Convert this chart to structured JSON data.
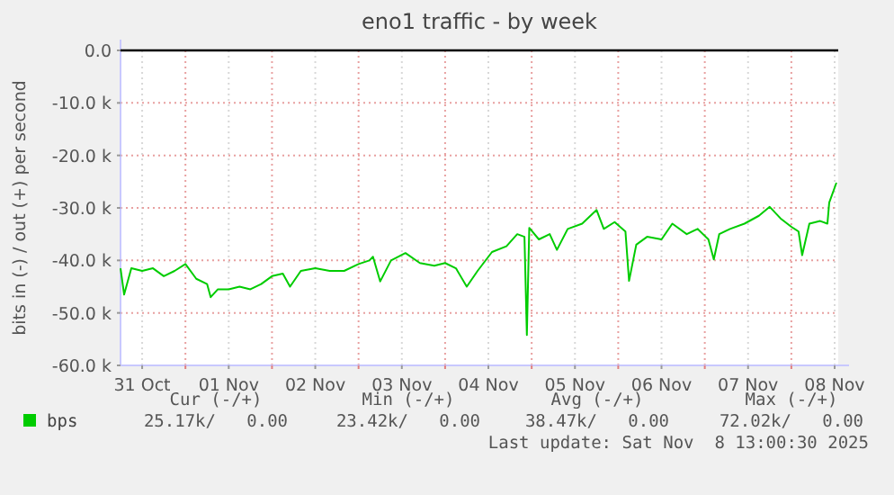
{
  "chart_data": {
    "type": "line",
    "title": "eno1 traffic - by week",
    "ylabel": "bits in (-) / out (+) per second",
    "xlim": [
      "2025-10-31T06:00",
      "2025-11-08T13:00"
    ],
    "xticks": [
      {
        "value": "2025-10-31T12:00",
        "label": "31 Oct"
      },
      {
        "value": "2025-11-01T00:00",
        "label": null
      },
      {
        "value": "2025-11-01T12:00",
        "label": "01 Nov"
      },
      {
        "value": "2025-11-02T00:00",
        "label": null
      },
      {
        "value": "2025-11-02T12:00",
        "label": "02 Nov"
      },
      {
        "value": "2025-11-03T00:00",
        "label": null
      },
      {
        "value": "2025-11-03T12:00",
        "label": "03 Nov"
      },
      {
        "value": "2025-11-04T00:00",
        "label": null
      },
      {
        "value": "2025-11-04T12:00",
        "label": "04 Nov"
      },
      {
        "value": "2025-11-05T00:00",
        "label": null
      },
      {
        "value": "2025-11-05T12:00",
        "label": "05 Nov"
      },
      {
        "value": "2025-11-06T00:00",
        "label": null
      },
      {
        "value": "2025-11-06T12:00",
        "label": "06 Nov"
      },
      {
        "value": "2025-11-07T00:00",
        "label": null
      },
      {
        "value": "2025-11-07T12:00",
        "label": "07 Nov"
      },
      {
        "value": "2025-11-08T00:00",
        "label": null
      },
      {
        "value": "2025-11-08T12:00",
        "label": "08 Nov"
      }
    ],
    "ylim": [
      -60000,
      0
    ],
    "yticks": [
      {
        "value": 0,
        "label": "0.0"
      },
      {
        "value": -10000,
        "label": "-10.0 k"
      },
      {
        "value": -20000,
        "label": "-20.0 k"
      },
      {
        "value": -30000,
        "label": "-30.0 k"
      },
      {
        "value": -40000,
        "label": "-40.0 k"
      },
      {
        "value": -50000,
        "label": "-50.0 k"
      },
      {
        "value": -60000,
        "label": "-60.0 k"
      }
    ],
    "grid": true,
    "legend": "bottom left",
    "marker": "none",
    "line_style": "solid",
    "ref_lines": [
      {
        "axis": "y",
        "value": 0,
        "color": "#000000"
      }
    ],
    "series": [
      {
        "name": "bps",
        "color": "#00cc00",
        "x": [
          "2025-10-31T06:00",
          "2025-10-31T07:00",
          "2025-10-31T09:00",
          "2025-10-31T12:00",
          "2025-10-31T15:00",
          "2025-10-31T18:00",
          "2025-10-31T21:00",
          "2025-11-01T00:00",
          "2025-11-01T03:00",
          "2025-11-01T06:00",
          "2025-11-01T07:00",
          "2025-11-01T09:00",
          "2025-11-01T12:00",
          "2025-11-01T15:00",
          "2025-11-01T18:00",
          "2025-11-01T21:00",
          "2025-11-02T00:00",
          "2025-11-02T03:00",
          "2025-11-02T05:00",
          "2025-11-02T08:00",
          "2025-11-02T12:00",
          "2025-11-02T16:00",
          "2025-11-02T20:00",
          "2025-11-03T00:00",
          "2025-11-03T03:00",
          "2025-11-03T04:00",
          "2025-11-03T06:00",
          "2025-11-03T09:00",
          "2025-11-03T13:00",
          "2025-11-03T17:00",
          "2025-11-03T21:00",
          "2025-11-04T00:00",
          "2025-11-04T03:00",
          "2025-11-04T06:00",
          "2025-11-04T09:00",
          "2025-11-04T13:00",
          "2025-11-04T17:00",
          "2025-11-04T20:00",
          "2025-11-04T22:00",
          "2025-11-04T22:40",
          "2025-11-04T23:20",
          "2025-11-05T02:00",
          "2025-11-05T05:00",
          "2025-11-05T07:00",
          "2025-11-05T10:00",
          "2025-11-05T14:00",
          "2025-11-05T18:00",
          "2025-11-05T20:00",
          "2025-11-05T23:00",
          "2025-11-06T02:00",
          "2025-11-06T03:00",
          "2025-11-06T05:00",
          "2025-11-06T08:00",
          "2025-11-06T12:00",
          "2025-11-06T15:00",
          "2025-11-06T19:00",
          "2025-11-06T22:00",
          "2025-11-07T01:00",
          "2025-11-07T02:30",
          "2025-11-07T04:00",
          "2025-11-07T07:00",
          "2025-11-07T11:00",
          "2025-11-07T15:00",
          "2025-11-07T18:00",
          "2025-11-07T21:00",
          "2025-11-08T00:00",
          "2025-11-08T02:00",
          "2025-11-08T03:00",
          "2025-11-08T05:00",
          "2025-11-08T08:00",
          "2025-11-08T10:00",
          "2025-11-08T10:30",
          "2025-11-08T12:30"
        ],
        "values": [
          -41500,
          -46500,
          -41500,
          -42000,
          -41500,
          -43000,
          -42000,
          -40700,
          -43500,
          -44500,
          -47000,
          -45500,
          -45500,
          -45000,
          -45500,
          -44500,
          -43000,
          -42500,
          -45000,
          -42000,
          -41500,
          -42000,
          -42000,
          -40700,
          -40000,
          -39300,
          -44000,
          -40000,
          -38600,
          -40500,
          -41000,
          -40500,
          -41500,
          -45000,
          -42000,
          -38400,
          -37300,
          -35000,
          -35500,
          -54200,
          -33800,
          -36000,
          -35000,
          -38000,
          -34000,
          -33000,
          -30400,
          -34000,
          -32700,
          -34500,
          -43900,
          -37000,
          -35500,
          -36000,
          -33000,
          -35000,
          -34000,
          -36000,
          -39800,
          -35000,
          -34000,
          -33000,
          -31500,
          -29800,
          -32000,
          -33600,
          -34500,
          -39000,
          -33000,
          -32500,
          -33000,
          -29000,
          -25200
        ]
      }
    ],
    "annotations": [
      "Cur (-/+)",
      "Min (-/+)",
      "Avg (-/+)",
      "Max (-/+)",
      "25.17k/   0.00",
      "23.42k/   0.00",
      "38.47k/   0.00",
      "72.02k/   0.00",
      "Last update: Sat Nov  8 13:00:30 2025"
    ]
  }
}
